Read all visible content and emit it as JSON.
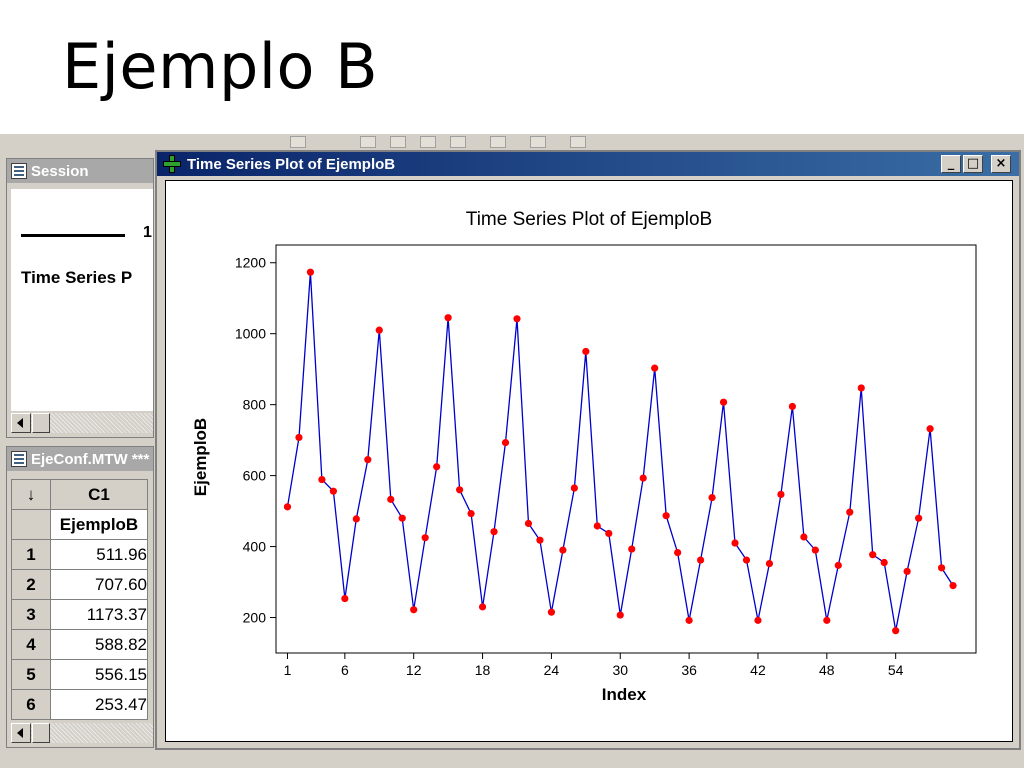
{
  "slide": {
    "title": "Ejemplo B"
  },
  "session": {
    "title": "Session",
    "line_number": "1",
    "content_text": "Time Series P"
  },
  "worksheet": {
    "title": "EjeConf.MTW ***",
    "corner": "↓",
    "column_id": "C1",
    "column_name": "EjemploB",
    "rows": [
      {
        "index": "1",
        "value": "511.96"
      },
      {
        "index": "2",
        "value": "707.60"
      },
      {
        "index": "3",
        "value": "1173.37"
      },
      {
        "index": "4",
        "value": "588.82"
      },
      {
        "index": "5",
        "value": "556.15"
      },
      {
        "index": "6",
        "value": "253.47"
      }
    ]
  },
  "plot_window": {
    "title": "Time Series Plot of EjemploB",
    "minimize": "_",
    "maximize": "□",
    "close": "×"
  },
  "colors": {
    "line": "#0000cc",
    "marker": "#ff0000",
    "titlebar": "#0a246a"
  },
  "chart_data": {
    "type": "line",
    "title": "Time Series Plot of EjemploB",
    "xlabel": "Index",
    "ylabel": "EjemploB",
    "xlim": [
      0,
      61
    ],
    "ylim": [
      100,
      1250
    ],
    "xticks": [
      1,
      6,
      12,
      18,
      24,
      30,
      36,
      42,
      48,
      54
    ],
    "yticks": [
      200,
      400,
      600,
      800,
      1000,
      1200
    ],
    "grid": false,
    "series": [
      {
        "marker": "circle",
        "values": [
          511.96,
          707.6,
          1173.37,
          588.82,
          556.15,
          253.47,
          478,
          645,
          1010,
          533,
          480,
          222,
          425,
          625,
          1045,
          560,
          493,
          230,
          442,
          693,
          1042,
          465,
          418,
          215,
          390,
          565,
          950,
          458,
          437,
          207,
          393,
          593,
          903,
          487,
          383,
          192,
          362,
          538,
          807,
          410,
          362,
          192,
          352,
          547,
          795,
          427,
          390,
          192,
          347,
          497,
          847,
          377,
          355,
          163,
          330,
          480,
          732,
          340,
          290
        ]
      }
    ]
  }
}
